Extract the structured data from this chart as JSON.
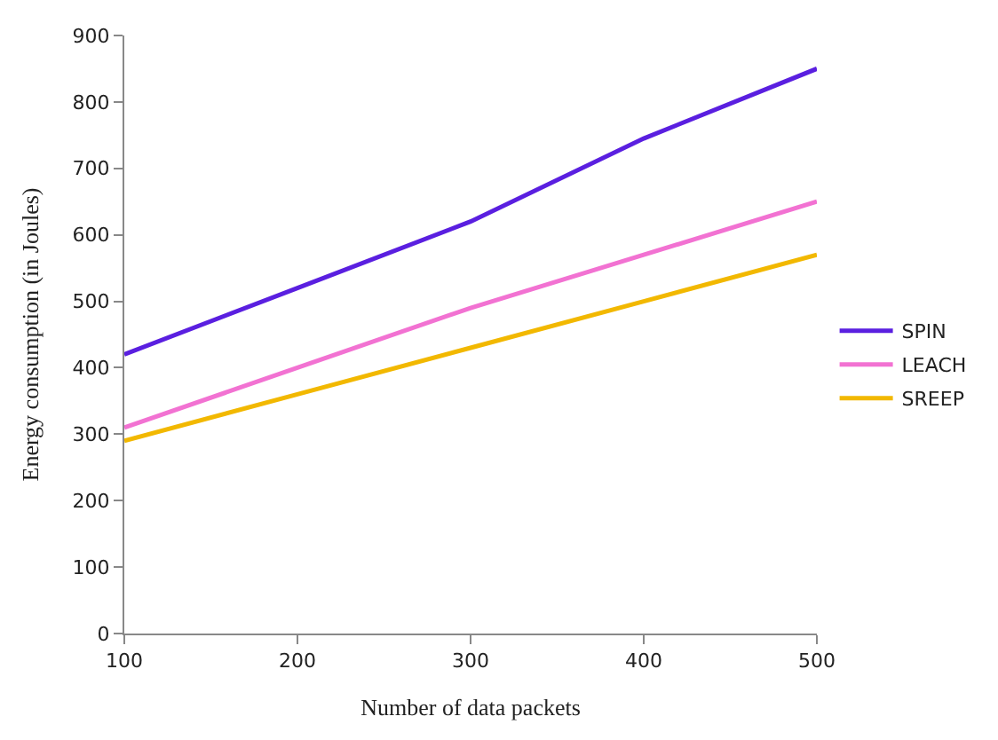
{
  "chart_data": {
    "type": "line",
    "xlabel": "Number of data packets",
    "ylabel": "Energy consumption (in Joules)",
    "x": [
      100,
      200,
      300,
      400,
      500
    ],
    "series": [
      {
        "name": "SPIN",
        "color": "#5a1fe0",
        "values": [
          420,
          520,
          620,
          745,
          850
        ]
      },
      {
        "name": "LEACH",
        "color": "#f272d2",
        "values": [
          310,
          400,
          490,
          570,
          650
        ]
      },
      {
        "name": "SREEP",
        "color": "#f2b800",
        "values": [
          290,
          360,
          430,
          500,
          570
        ]
      }
    ],
    "xlim": [
      100,
      500
    ],
    "xticks": [
      100,
      200,
      300,
      400,
      500
    ],
    "ylim": [
      0,
      900
    ],
    "yticks": [
      0,
      100,
      200,
      300,
      400,
      500,
      600,
      700,
      800,
      900
    ],
    "legend": "right",
    "marker": "none",
    "line_style": "solid"
  }
}
